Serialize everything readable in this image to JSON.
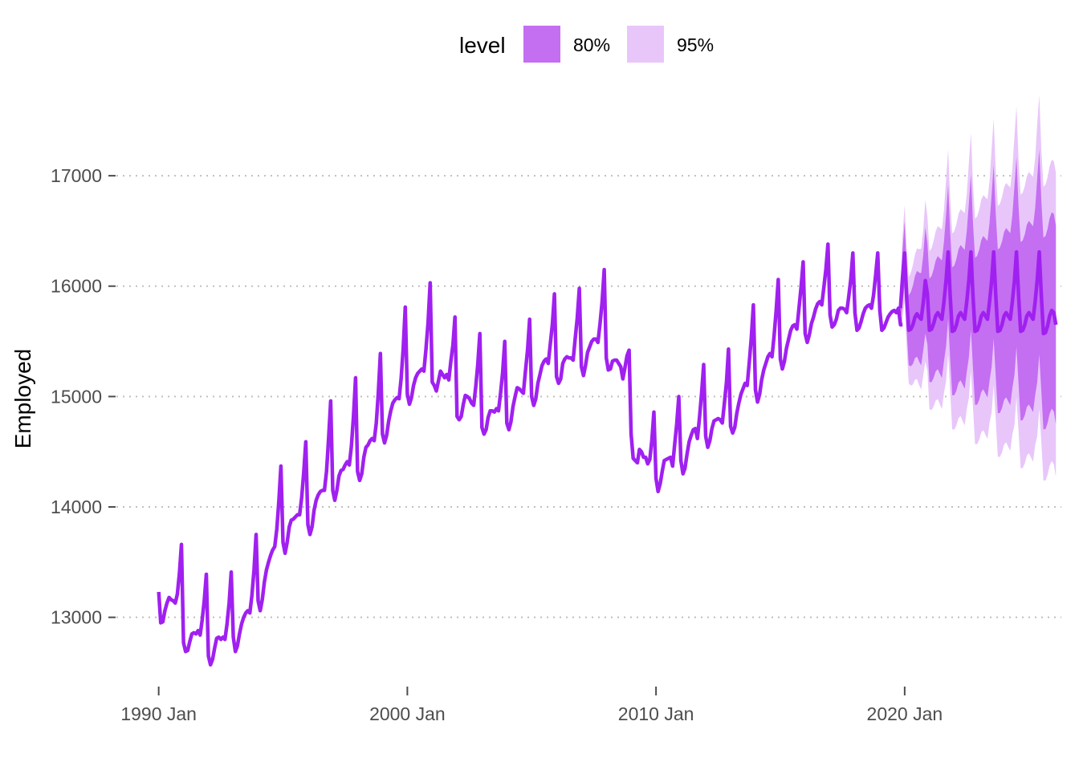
{
  "chart_data": {
    "type": "line",
    "xlabel": "",
    "ylabel": "Employed",
    "xlim": [
      1988.3,
      2026.3
    ],
    "ylim": [
      12380,
      17720
    ],
    "grid": "horizontal dotted",
    "legend": {
      "title": "level",
      "position": "top",
      "entries": [
        {
          "label": "80%",
          "color": "#c46ef2"
        },
        {
          "label": "95%",
          "color": "#e8c6fa"
        }
      ]
    },
    "x_ticks": [
      {
        "value": 1990,
        "label": "1990 Jan"
      },
      {
        "value": 2000,
        "label": "2000 Jan"
      },
      {
        "value": 2010,
        "label": "2010 Jan"
      },
      {
        "value": 2020,
        "label": "2020 Jan"
      }
    ],
    "y_ticks": [
      {
        "value": 13000,
        "label": "13000"
      },
      {
        "value": 14000,
        "label": "14000"
      },
      {
        "value": 15000,
        "label": "15000"
      },
      {
        "value": 16000,
        "label": "16000"
      },
      {
        "value": 17000,
        "label": "17000"
      }
    ],
    "colors": {
      "line": "#a020f0",
      "band80": "#c46ef2",
      "band95": "#e8c6fa",
      "grid": "#bfbfbf",
      "tick": "#4d4d4d"
    },
    "series": [
      {
        "type": "observed",
        "x_start": 1990.0,
        "x_step": 0.08333,
        "values": [
          13230,
          12950,
          12960,
          13060,
          13130,
          13180,
          13160,
          13150,
          13130,
          13210,
          13400,
          13660,
          12770,
          12690,
          12700,
          12780,
          12850,
          12860,
          12850,
          12880,
          12840,
          12980,
          13150,
          13390,
          12650,
          12570,
          12620,
          12720,
          12810,
          12820,
          12800,
          12820,
          12800,
          12940,
          13130,
          13410,
          12820,
          12690,
          12740,
          12850,
          12940,
          13000,
          13040,
          13060,
          13040,
          13200,
          13430,
          13750,
          13150,
          13060,
          13160,
          13320,
          13430,
          13500,
          13560,
          13610,
          13640,
          13800,
          14060,
          14370,
          13680,
          13580,
          13680,
          13820,
          13880,
          13890,
          13910,
          13930,
          13930,
          14080,
          14310,
          14590,
          13840,
          13750,
          13820,
          13970,
          14060,
          14110,
          14140,
          14150,
          14150,
          14320,
          14620,
          14960,
          14150,
          14060,
          14150,
          14280,
          14330,
          14340,
          14380,
          14410,
          14380,
          14550,
          14820,
          15170,
          14320,
          14240,
          14300,
          14450,
          14540,
          14560,
          14600,
          14620,
          14600,
          14760,
          15030,
          15390,
          14660,
          14580,
          14650,
          14780,
          14870,
          14940,
          14970,
          14990,
          14980,
          15160,
          15430,
          15810,
          15020,
          14930,
          14990,
          15100,
          15170,
          15210,
          15230,
          15250,
          15230,
          15430,
          15670,
          16030,
          15130,
          15100,
          15050,
          15140,
          15230,
          15200,
          15170,
          15200,
          15150,
          15320,
          15470,
          15720,
          14820,
          14790,
          14820,
          14930,
          15010,
          15000,
          14980,
          14940,
          14920,
          15090,
          15290,
          15570,
          14720,
          14660,
          14700,
          14810,
          14870,
          14870,
          14860,
          14890,
          14870,
          15030,
          15220,
          15500,
          14760,
          14700,
          14770,
          14910,
          15000,
          15080,
          15070,
          15050,
          15030,
          15230,
          15420,
          15700,
          15000,
          14920,
          14980,
          15120,
          15200,
          15280,
          15320,
          15340,
          15300,
          15480,
          15660,
          15930,
          15180,
          15120,
          15160,
          15300,
          15340,
          15360,
          15350,
          15350,
          15330,
          15520,
          15710,
          15980,
          15270,
          15190,
          15280,
          15400,
          15450,
          15500,
          15520,
          15520,
          15490,
          15660,
          15860,
          16150,
          15350,
          15240,
          15250,
          15320,
          15330,
          15330,
          15300,
          15270,
          15160,
          15260,
          15370,
          15420,
          14660,
          14440,
          14420,
          14400,
          14520,
          14500,
          14450,
          14450,
          14390,
          14430,
          14600,
          14860,
          14260,
          14140,
          14210,
          14320,
          14420,
          14430,
          14440,
          14450,
          14370,
          14560,
          14750,
          15000,
          14420,
          14300,
          14350,
          14480,
          14590,
          14650,
          14700,
          14710,
          14620,
          14810,
          15030,
          15290,
          14640,
          14540,
          14600,
          14710,
          14780,
          14790,
          14800,
          14790,
          14760,
          14940,
          15130,
          15430,
          14730,
          14670,
          14720,
          14850,
          14940,
          15020,
          15070,
          15120,
          15100,
          15310,
          15530,
          15830,
          15060,
          14950,
          15020,
          15150,
          15240,
          15300,
          15360,
          15390,
          15360,
          15550,
          15780,
          16060,
          15340,
          15250,
          15320,
          15440,
          15520,
          15600,
          15640,
          15650,
          15610,
          15800,
          15990,
          16220,
          15570,
          15490,
          15560,
          15660,
          15720,
          15790,
          15840,
          15860,
          15830,
          15990,
          16150,
          16380,
          15740,
          15630,
          15650,
          15700,
          15780,
          15800,
          15800,
          15790,
          15760,
          15900,
          16060,
          16300,
          15760,
          15600,
          15620,
          15680,
          15750,
          15800,
          15820,
          15830,
          15800,
          15920,
          16100,
          16300,
          15780,
          15600,
          15620,
          15670,
          15720,
          15750,
          15770,
          15780,
          15760,
          15800,
          15650,
          15650
        ]
      },
      {
        "type": "forecast",
        "x_start": 2019.83,
        "x_step": 0.08333,
        "values": [
          15800,
          16080,
          16300,
          15900,
          15600,
          15610,
          15650,
          15720,
          15750,
          15720,
          15700,
          15850,
          16050,
          15930,
          15600,
          15610,
          15660,
          15730,
          15760,
          15730,
          15700,
          15860,
          16050,
          16310,
          15920,
          15590,
          15600,
          15650,
          15730,
          15760,
          15730,
          15700,
          15860,
          16050,
          16310,
          15920,
          15590,
          15600,
          15650,
          15730,
          15760,
          15730,
          15700,
          15860,
          16050,
          16310,
          15920,
          15590,
          15600,
          15650,
          15730,
          15760,
          15730,
          15700,
          15860,
          16050,
          16310,
          15920,
          15590,
          15600,
          15650,
          15730,
          15760,
          15730,
          15700,
          15860,
          16050,
          16310,
          15910,
          15570,
          15580,
          15640,
          15730,
          15780,
          15760,
          15650
        ],
        "band80_halfwidth_start": 140,
        "band80_halfwidth_end": 900,
        "band95_halfwidth_start": 210,
        "band95_halfwidth_end": 1380
      }
    ]
  }
}
